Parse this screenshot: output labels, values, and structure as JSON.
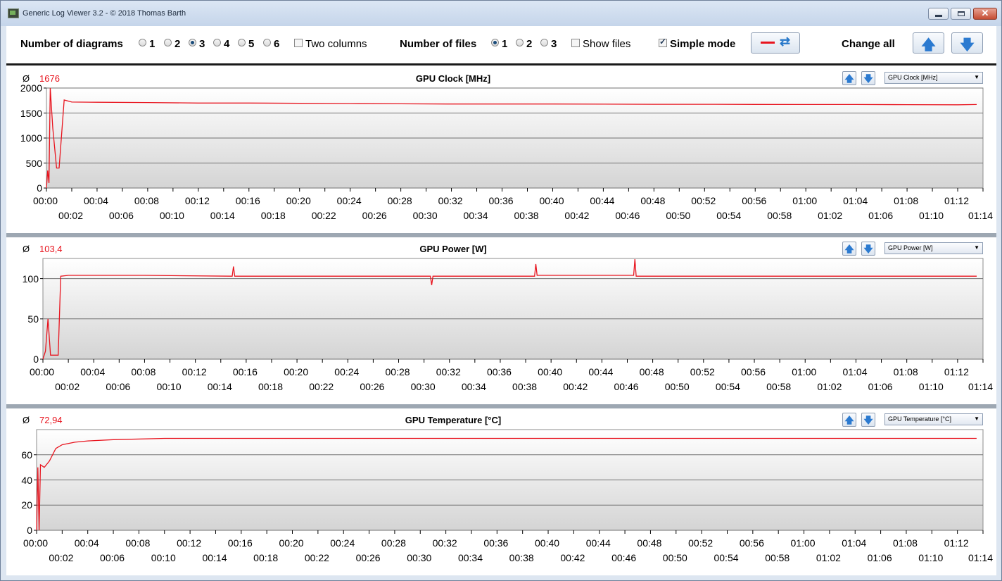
{
  "window": {
    "title": "Generic Log Viewer 3.2 - © 2018 Thomas Barth"
  },
  "toolbar": {
    "num_diagrams_label": "Number of diagrams",
    "diagram_options": [
      "1",
      "2",
      "3",
      "4",
      "5",
      "6"
    ],
    "diagram_selected": "3",
    "two_columns_label": "Two columns",
    "two_columns_checked": false,
    "num_files_label": "Number of files",
    "file_options": [
      "1",
      "2",
      "3"
    ],
    "file_selected": "1",
    "show_files_label": "Show files",
    "show_files_checked": false,
    "simple_mode_label": "Simple mode",
    "simple_mode_checked": true,
    "change_all_label": "Change all"
  },
  "colors": {
    "series": "#e8141e",
    "accent": "#2b7ad0"
  },
  "x_ticks_top": [
    "00:00",
    "00:04",
    "00:08",
    "00:12",
    "00:16",
    "00:20",
    "00:24",
    "00:28",
    "00:32",
    "00:36",
    "00:40",
    "00:44",
    "00:48",
    "00:52",
    "00:56",
    "01:00",
    "01:04",
    "01:08",
    "01:12"
  ],
  "x_ticks_bottom": [
    "00:02",
    "00:06",
    "00:10",
    "00:14",
    "00:18",
    "00:22",
    "00:26",
    "00:30",
    "00:34",
    "00:38",
    "00:42",
    "00:46",
    "00:50",
    "00:54",
    "00:58",
    "01:02",
    "01:06",
    "01:10",
    "01:14"
  ],
  "chart_data": [
    {
      "type": "line",
      "title": "GPU Clock [MHz]",
      "average_symbol": "Ø",
      "average": "1676",
      "selector": "GPU Clock [MHz]",
      "y_ticks": [
        "2000",
        "1500",
        "1000",
        "500",
        "0"
      ],
      "ylim": [
        0,
        2000
      ],
      "x_unit": "minutes",
      "xlim": [
        0,
        74
      ],
      "series": [
        {
          "x": [
            0,
            0.1,
            0.2,
            0.3,
            0.5,
            0.8,
            1.0,
            1.4,
            2,
            4,
            8,
            12,
            16,
            20,
            24,
            28,
            32,
            36,
            40,
            44,
            48,
            52,
            56,
            60,
            64,
            68,
            72,
            73.5
          ],
          "y": [
            0,
            350,
            100,
            2000,
            1200,
            400,
            400,
            1760,
            1720,
            1715,
            1710,
            1700,
            1700,
            1695,
            1690,
            1685,
            1680,
            1680,
            1680,
            1678,
            1675,
            1675,
            1672,
            1670,
            1670,
            1668,
            1665,
            1670
          ]
        }
      ]
    },
    {
      "type": "line",
      "title": "GPU Power [W]",
      "average_symbol": "Ø",
      "average": "103,4",
      "selector": "GPU Power [W]",
      "y_ticks": [
        "100",
        "50",
        "0"
      ],
      "ylim": [
        0,
        125
      ],
      "x_unit": "minutes",
      "xlim": [
        0,
        74
      ],
      "series": [
        {
          "x": [
            0,
            0.2,
            0.4,
            0.6,
            0.8,
            1.2,
            1.4,
            2,
            8,
            14.9,
            15,
            15.1,
            20,
            30.5,
            30.6,
            30.7,
            38.7,
            38.8,
            38.9,
            46.5,
            46.6,
            46.7,
            52,
            60,
            72,
            73.5
          ],
          "y": [
            0,
            10,
            50,
            5,
            5,
            5,
            103,
            104,
            104,
            103,
            115,
            103,
            103,
            103,
            92,
            103,
            103,
            118,
            104,
            104,
            124,
            103,
            103,
            103,
            103,
            103
          ]
        }
      ]
    },
    {
      "type": "line",
      "title": "GPU Temperature [°C]",
      "average_symbol": "Ø",
      "average": "72,94",
      "selector": "GPU Temperature [°C]",
      "y_ticks": [
        "60",
        "40",
        "20",
        "0"
      ],
      "ylim": [
        0,
        80
      ],
      "x_unit": "minutes",
      "xlim": [
        0,
        74
      ],
      "series": [
        {
          "x": [
            0,
            0.1,
            0.2,
            0.3,
            0.6,
            1.0,
            1.5,
            2,
            3,
            4,
            6,
            10,
            20,
            30,
            40,
            50,
            60,
            70,
            73.5
          ],
          "y": [
            0,
            50,
            0,
            52,
            50,
            55,
            65,
            68,
            70,
            71,
            72,
            73,
            73,
            73,
            73,
            73,
            73,
            73,
            73
          ]
        }
      ]
    }
  ]
}
